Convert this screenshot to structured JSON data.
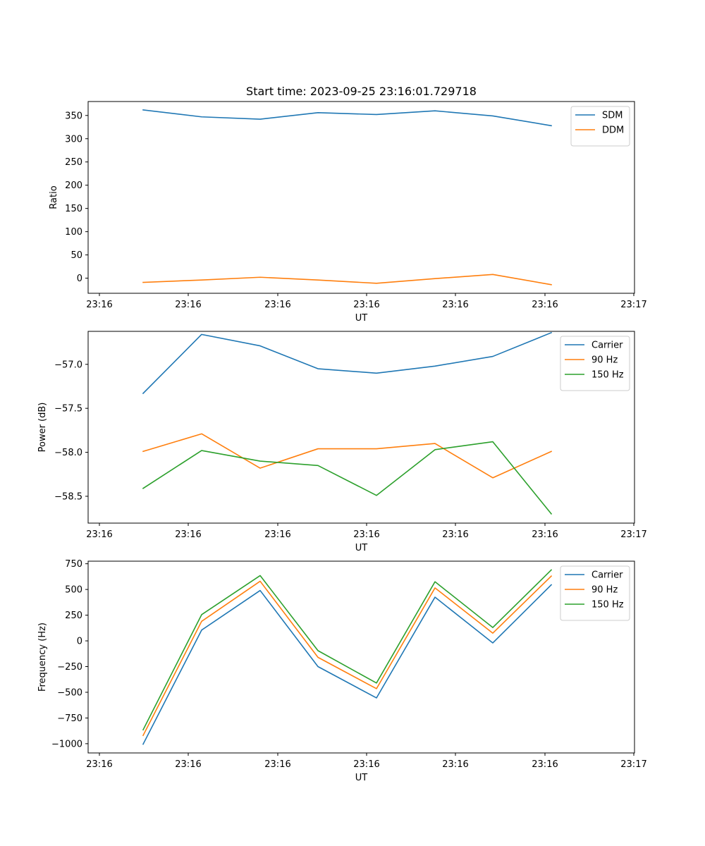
{
  "title": "Start time: 2023-09-25 23:16:01.729718",
  "chart_data": [
    {
      "type": "line",
      "xlabel": "UT",
      "ylabel": "Ratio",
      "x_tick_labels": [
        "23:16",
        "23:16",
        "23:16",
        "23:16",
        "23:16",
        "23:16",
        "23:17"
      ],
      "y_ticks": [
        0,
        50,
        100,
        150,
        200,
        250,
        300,
        350
      ],
      "y_tick_labels": [
        "0",
        "50",
        "100",
        "150",
        "200",
        "250",
        "300",
        "350"
      ],
      "ylim": [
        -32.5,
        380
      ],
      "legend": "top-right",
      "series": [
        {
          "name": "SDM",
          "color": "#1f77b4",
          "values": [
            362,
            347,
            342,
            356,
            352,
            360,
            349,
            328
          ]
        },
        {
          "name": "DDM",
          "color": "#ff7f0e",
          "values": [
            -9,
            -4,
            2,
            -4,
            -11,
            -1,
            8,
            -14
          ]
        }
      ]
    },
    {
      "type": "line",
      "xlabel": "UT",
      "ylabel": "Power (dB)",
      "x_tick_labels": [
        "23:16",
        "23:16",
        "23:16",
        "23:16",
        "23:16",
        "23:16",
        "23:17"
      ],
      "y_ticks": [
        -58.5,
        -58.0,
        -57.5,
        -57.0
      ],
      "y_tick_labels": [
        "−58.5",
        "−58.0",
        "−57.5",
        "−57.0"
      ],
      "ylim": [
        -58.805,
        -56.625
      ],
      "legend": "top-right",
      "series": [
        {
          "name": "Carrier",
          "color": "#1f77b4",
          "values": [
            -57.33,
            -56.66,
            -56.79,
            -57.05,
            -57.1,
            -57.02,
            -56.91,
            -56.64
          ]
        },
        {
          "name": "90 Hz",
          "color": "#ff7f0e",
          "values": [
            -57.99,
            -57.79,
            -58.18,
            -57.96,
            -57.96,
            -57.9,
            -58.29,
            -57.99
          ]
        },
        {
          "name": "150 Hz",
          "color": "#2ca02c",
          "values": [
            -58.41,
            -57.98,
            -58.1,
            -58.15,
            -58.49,
            -57.97,
            -57.88,
            -58.7
          ]
        }
      ]
    },
    {
      "type": "line",
      "xlabel": "UT",
      "ylabel": "Frequency (Hz)",
      "x_tick_labels": [
        "23:16",
        "23:16",
        "23:16",
        "23:16",
        "23:16",
        "23:16",
        "23:17"
      ],
      "y_ticks": [
        -1000,
        -750,
        -500,
        -250,
        0,
        250,
        500,
        750
      ],
      "y_tick_labels": [
        "−1000",
        "−750",
        "−500",
        "−250",
        "0",
        "250",
        "500",
        "750"
      ],
      "ylim": [
        -1090,
        775
      ],
      "legend": "top-right",
      "series": [
        {
          "name": "Carrier",
          "color": "#1f77b4",
          "values": [
            -1005,
            105,
            490,
            -250,
            -555,
            425,
            -20,
            545
          ]
        },
        {
          "name": "90 Hz",
          "color": "#ff7f0e",
          "values": [
            -920,
            190,
            580,
            -160,
            -465,
            515,
            75,
            630
          ]
        },
        {
          "name": "150 Hz",
          "color": "#2ca02c",
          "values": [
            -865,
            255,
            635,
            -95,
            -410,
            575,
            130,
            690
          ]
        }
      ]
    }
  ]
}
